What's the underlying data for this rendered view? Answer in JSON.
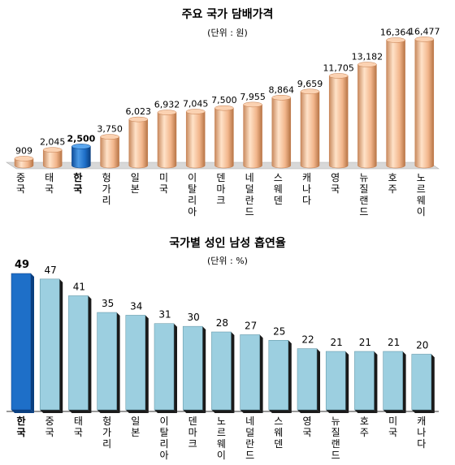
{
  "chart_data": [
    {
      "type": "bar",
      "title": "주요 국가 담배가격",
      "subtitle": "(단위 : 원)",
      "xlabel": "",
      "ylabel": "",
      "ylim": [
        0,
        18000
      ],
      "categories": [
        "중국",
        "태국",
        "한국",
        "헝가리",
        "일본",
        "미국",
        "이탈리아",
        "덴마크",
        "네덜란드",
        "스웨덴",
        "캐나다",
        "영국",
        "뉴질랜드",
        "호주",
        "노르웨이"
      ],
      "values": [
        909,
        2045,
        2500,
        3750,
        6023,
        6932,
        7045,
        7500,
        7955,
        8864,
        9659,
        11705,
        13182,
        16364,
        16477
      ],
      "value_labels": [
        "909",
        "2,045",
        "2,500",
        "3,750",
        "6,023",
        "6,932",
        "7,045",
        "7,500",
        "7,955",
        "8,864",
        "9,659",
        "11,705",
        "13,182",
        "16,364",
        "16,477"
      ],
      "highlight": "한국",
      "colors": {
        "bar": "#f0b48a",
        "bar_dark": "#c47c4c",
        "highlight": "#1e6fc8",
        "highlight_dark": "#0a3f80"
      }
    },
    {
      "type": "bar",
      "title": "국가별 성인 남성 흡연율",
      "subtitle": "(단위 : %)",
      "xlabel": "",
      "ylabel": "",
      "ylim": [
        0,
        55
      ],
      "categories": [
        "한국",
        "중국",
        "태국",
        "헝가리",
        "일본",
        "이탈리아",
        "덴마크",
        "노르웨이",
        "네덜란드",
        "스웨덴",
        "영국",
        "뉴질랜드",
        "호주",
        "미국",
        "캐나다"
      ],
      "values": [
        49,
        47,
        41,
        35,
        34,
        31,
        30,
        28,
        27,
        25,
        22,
        21,
        21,
        21,
        20
      ],
      "value_labels": [
        "49",
        "47",
        "41",
        "35",
        "34",
        "31",
        "30",
        "28",
        "27",
        "25",
        "22",
        "21",
        "21",
        "21",
        "20"
      ],
      "highlight": "한국",
      "colors": {
        "bar": "#9ccfe0",
        "bar_dark": "#3a7a90",
        "highlight": "#1e6fc8",
        "highlight_dark": "#0a3f80"
      }
    }
  ]
}
